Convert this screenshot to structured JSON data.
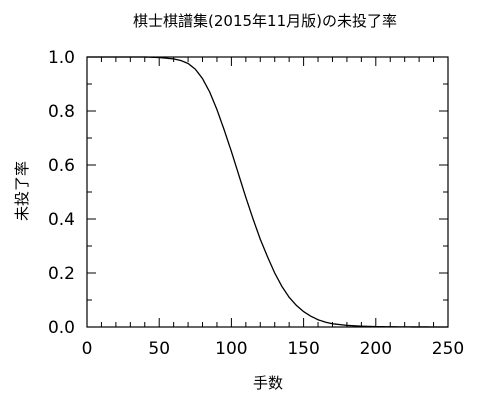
{
  "chart_data": {
    "type": "line",
    "title": "棋士棋譜集(2015年11月版)の未投了率",
    "xlabel": "手数",
    "ylabel": "未投了率",
    "xlim": [
      0,
      250
    ],
    "ylim": [
      0,
      1.0
    ],
    "x_ticks": [
      0,
      50,
      100,
      150,
      200,
      250
    ],
    "x_tick_labels": [
      "0",
      "50",
      "100",
      "150",
      "200",
      "250"
    ],
    "y_ticks": [
      0,
      0.2,
      0.4,
      0.6,
      0.8,
      1.0
    ],
    "y_tick_labels": [
      "0.0",
      "0.2",
      "0.4",
      "0.6",
      "0.8",
      "1.0"
    ],
    "grid": false,
    "legend": "none",
    "line_color": "#000000",
    "series": [
      {
        "x": [
          0,
          40,
          50,
          60,
          65,
          70,
          75,
          80,
          85,
          90,
          95,
          100,
          105,
          110,
          115,
          120,
          125,
          130,
          135,
          140,
          145,
          150,
          155,
          160,
          165,
          170,
          180,
          190,
          200,
          210,
          220,
          230,
          240,
          250
        ],
        "values": [
          1.0,
          1.0,
          0.998,
          0.993,
          0.987,
          0.976,
          0.955,
          0.92,
          0.87,
          0.805,
          0.73,
          0.65,
          0.565,
          0.48,
          0.4,
          0.325,
          0.26,
          0.2,
          0.15,
          0.11,
          0.08,
          0.057,
          0.04,
          0.027,
          0.018,
          0.012,
          0.006,
          0.003,
          0.0015,
          0.0008,
          0.0004,
          0.0002,
          0.0001,
          0.0
        ]
      }
    ]
  }
}
